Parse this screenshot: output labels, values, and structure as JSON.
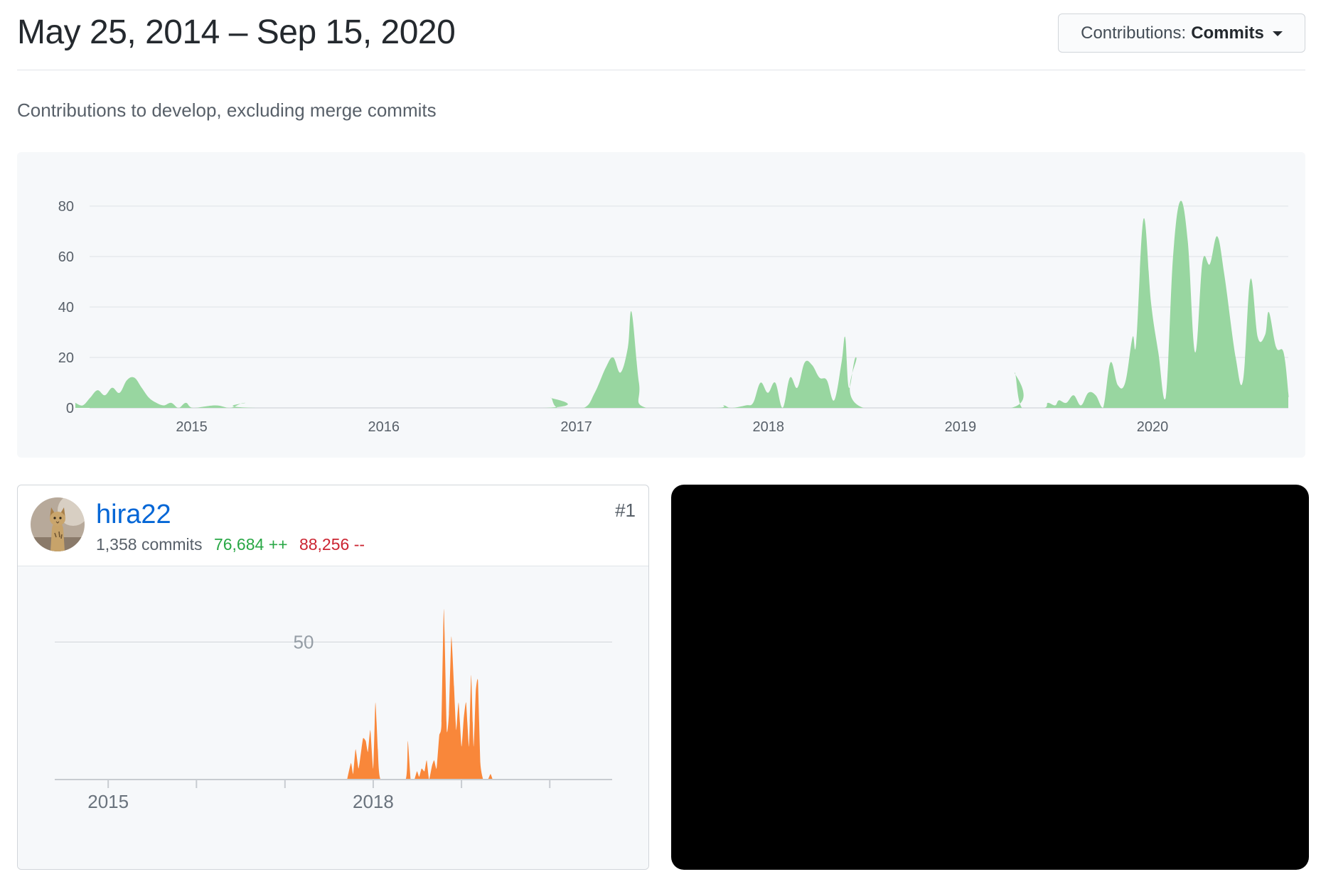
{
  "header": {
    "date_range": "May 25, 2014 – Sep 15, 2020",
    "contributions_button": {
      "label": "Contributions:",
      "value": "Commits"
    }
  },
  "subtitle": "Contributions to develop, excluding merge commits",
  "chart_data": [
    {
      "type": "area",
      "color": "#98d6a0",
      "x_start": "2014-05-25",
      "x_end": "2020-09-15",
      "xticks": [
        "2015",
        "2016",
        "2017",
        "2018",
        "2019",
        "2020"
      ],
      "yticks": [
        0,
        20,
        40,
        60,
        80
      ],
      "ylim": [
        0,
        80
      ],
      "grid": true,
      "points": [
        [
          "2014-05-25",
          2
        ],
        [
          "2014-06-08",
          1
        ],
        [
          "2014-06-22",
          4
        ],
        [
          "2014-07-06",
          7
        ],
        [
          "2014-07-20",
          5
        ],
        [
          "2014-08-03",
          8
        ],
        [
          "2014-08-17",
          6
        ],
        [
          "2014-08-31",
          11
        ],
        [
          "2014-09-14",
          12
        ],
        [
          "2014-09-28",
          8
        ],
        [
          "2014-10-12",
          4
        ],
        [
          "2014-10-26",
          2
        ],
        [
          "2014-11-09",
          1
        ],
        [
          "2014-11-23",
          2
        ],
        [
          "2014-12-07",
          0
        ],
        [
          "2014-12-21",
          2
        ],
        [
          "2015-01-04",
          0
        ],
        [
          "2015-02-15",
          1
        ],
        [
          "2015-03-15",
          0
        ],
        [
          "2015-04-12",
          2
        ],
        [
          "2015-05-10",
          0
        ],
        [
          "2016-10-30",
          0
        ],
        [
          "2016-11-13",
          4
        ],
        [
          "2016-11-27",
          0
        ],
        [
          "2017-01-15",
          0
        ],
        [
          "2017-02-05",
          6
        ],
        [
          "2017-02-26",
          16
        ],
        [
          "2017-03-12",
          20
        ],
        [
          "2017-03-26",
          14
        ],
        [
          "2017-04-09",
          24
        ],
        [
          "2017-04-16",
          38
        ],
        [
          "2017-04-30",
          10
        ],
        [
          "2017-05-14",
          0
        ],
        [
          "2017-09-24",
          0
        ],
        [
          "2017-10-08",
          1
        ],
        [
          "2017-10-22",
          0
        ],
        [
          "2017-11-19",
          1
        ],
        [
          "2017-12-03",
          2
        ],
        [
          "2017-12-17",
          10
        ],
        [
          "2017-12-31",
          6
        ],
        [
          "2018-01-14",
          10
        ],
        [
          "2018-01-28",
          0
        ],
        [
          "2018-02-11",
          12
        ],
        [
          "2018-02-25",
          8
        ],
        [
          "2018-03-11",
          18
        ],
        [
          "2018-03-25",
          17
        ],
        [
          "2018-04-08",
          12
        ],
        [
          "2018-04-22",
          11
        ],
        [
          "2018-05-06",
          3
        ],
        [
          "2018-05-20",
          18
        ],
        [
          "2018-05-27",
          28
        ],
        [
          "2018-06-03",
          8
        ],
        [
          "2018-06-17",
          20
        ],
        [
          "2018-07-01",
          0
        ],
        [
          "2019-04-07",
          0
        ],
        [
          "2019-04-14",
          14
        ],
        [
          "2019-04-28",
          0
        ],
        [
          "2019-06-09",
          0
        ],
        [
          "2019-06-16",
          2
        ],
        [
          "2019-06-30",
          1
        ],
        [
          "2019-07-07",
          3
        ],
        [
          "2019-07-21",
          2
        ],
        [
          "2019-08-04",
          5
        ],
        [
          "2019-08-18",
          1
        ],
        [
          "2019-09-01",
          6
        ],
        [
          "2019-09-15",
          5
        ],
        [
          "2019-09-29",
          0
        ],
        [
          "2019-10-13",
          18
        ],
        [
          "2019-10-27",
          9
        ],
        [
          "2019-11-10",
          10
        ],
        [
          "2019-11-24",
          28
        ],
        [
          "2019-12-01",
          26
        ],
        [
          "2019-12-15",
          75
        ],
        [
          "2019-12-29",
          42
        ],
        [
          "2020-01-12",
          22
        ],
        [
          "2020-01-26",
          4
        ],
        [
          "2020-02-09",
          60
        ],
        [
          "2020-02-23",
          82
        ],
        [
          "2020-03-08",
          66
        ],
        [
          "2020-03-22",
          22
        ],
        [
          "2020-04-05",
          58
        ],
        [
          "2020-04-19",
          57
        ],
        [
          "2020-05-03",
          68
        ],
        [
          "2020-05-17",
          52
        ],
        [
          "2020-06-07",
          20
        ],
        [
          "2020-06-21",
          11
        ],
        [
          "2020-07-05",
          51
        ],
        [
          "2020-07-19",
          28
        ],
        [
          "2020-08-02",
          29
        ],
        [
          "2020-08-09",
          38
        ],
        [
          "2020-08-23",
          24
        ],
        [
          "2020-09-06",
          22
        ],
        [
          "2020-09-20",
          6
        ],
        [
          "2020-10-04",
          4
        ],
        [
          "2020-10-18",
          0
        ]
      ]
    },
    {
      "type": "area",
      "color": "#f9873a",
      "x_start": "2014-05-25",
      "x_end": "2020-09-15",
      "xticks": [
        "2015",
        "2018"
      ],
      "ytick_label": "50",
      "ylim": [
        0,
        50
      ],
      "grid": true,
      "points": [
        [
          "2017-09-15",
          0
        ],
        [
          "2017-10-01",
          6
        ],
        [
          "2017-10-10",
          2
        ],
        [
          "2017-10-20",
          11
        ],
        [
          "2017-11-01",
          4
        ],
        [
          "2017-11-10",
          9
        ],
        [
          "2017-11-20",
          15
        ],
        [
          "2017-12-01",
          14
        ],
        [
          "2017-12-10",
          10
        ],
        [
          "2017-12-20",
          18
        ],
        [
          "2018-01-01",
          4
        ],
        [
          "2018-01-10",
          28
        ],
        [
          "2018-01-20",
          11
        ],
        [
          "2018-02-01",
          0
        ],
        [
          "2018-05-15",
          0
        ],
        [
          "2018-05-24",
          14
        ],
        [
          "2018-06-05",
          0
        ],
        [
          "2018-06-20",
          0
        ],
        [
          "2018-07-01",
          3
        ],
        [
          "2018-07-10",
          1
        ],
        [
          "2018-07-20",
          4
        ],
        [
          "2018-08-01",
          3
        ],
        [
          "2018-08-10",
          7
        ],
        [
          "2018-08-20",
          0
        ],
        [
          "2018-09-01",
          5
        ],
        [
          "2018-09-10",
          7
        ],
        [
          "2018-09-20",
          4
        ],
        [
          "2018-10-01",
          16
        ],
        [
          "2018-10-10",
          20
        ],
        [
          "2018-10-20",
          62
        ],
        [
          "2018-11-01",
          18
        ],
        [
          "2018-11-10",
          24
        ],
        [
          "2018-11-20",
          52
        ],
        [
          "2018-12-01",
          34
        ],
        [
          "2018-12-10",
          18
        ],
        [
          "2018-12-20",
          28
        ],
        [
          "2019-01-01",
          12
        ],
        [
          "2019-01-10",
          22
        ],
        [
          "2019-01-20",
          28
        ],
        [
          "2019-02-01",
          12
        ],
        [
          "2019-02-10",
          38
        ],
        [
          "2019-02-20",
          12
        ],
        [
          "2019-03-01",
          32
        ],
        [
          "2019-03-10",
          36
        ],
        [
          "2019-03-20",
          6
        ],
        [
          "2019-04-01",
          0
        ],
        [
          "2019-04-20",
          0
        ],
        [
          "2019-05-01",
          2
        ],
        [
          "2019-05-10",
          0
        ]
      ]
    }
  ],
  "contributor": {
    "username": "hira22",
    "rank": "#1",
    "commits": "1,358 commits",
    "additions": "76,684 ++",
    "deletions": "88,256 --",
    "avatar_icon": "cat-avatar-icon"
  }
}
